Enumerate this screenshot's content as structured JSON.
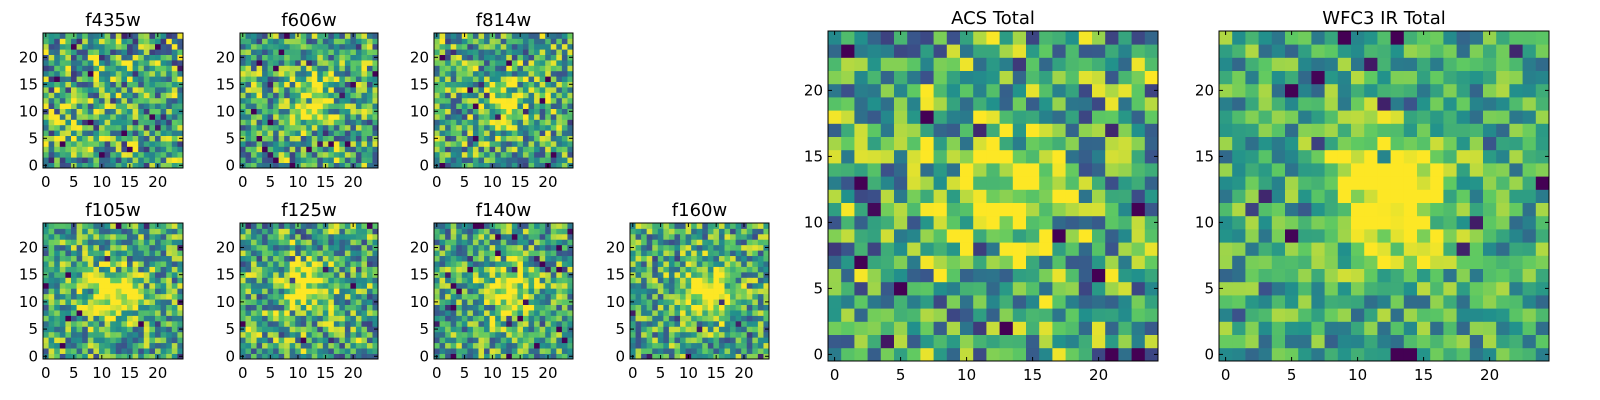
{
  "chart_data": [
    {
      "type": "heatmap",
      "title": "f435w",
      "grid_size": 25,
      "xlim": [
        -0.5,
        24.5
      ],
      "ylim": [
        -0.5,
        24.5
      ],
      "x_ticks": [
        0,
        5,
        10,
        15,
        20
      ],
      "y_ticks": [
        0,
        5,
        10,
        15,
        20
      ],
      "colormap": "viridis",
      "source_center": null,
      "source_amplitude": 0.0,
      "noise_amplitude": 0.55,
      "seed": 11
    },
    {
      "type": "heatmap",
      "title": "f606w",
      "grid_size": 25,
      "xlim": [
        -0.5,
        24.5
      ],
      "ylim": [
        -0.5,
        24.5
      ],
      "x_ticks": [
        0,
        5,
        10,
        15,
        20
      ],
      "y_ticks": [
        0,
        5,
        10,
        15,
        20
      ],
      "colormap": "viridis",
      "source_center": [
        12,
        11.5
      ],
      "source_amplitude": 0.35,
      "noise_amplitude": 0.5,
      "seed": 23
    },
    {
      "type": "heatmap",
      "title": "f814w",
      "grid_size": 25,
      "xlim": [
        -0.5,
        24.5
      ],
      "ylim": [
        -0.5,
        24.5
      ],
      "x_ticks": [
        0,
        5,
        10,
        15,
        20
      ],
      "y_ticks": [
        0,
        5,
        10,
        15,
        20
      ],
      "colormap": "viridis",
      "source_center": [
        12,
        11.5
      ],
      "source_amplitude": 0.35,
      "noise_amplitude": 0.5,
      "seed": 37
    },
    {
      "type": "heatmap",
      "title": "f105w",
      "grid_size": 25,
      "xlim": [
        -0.5,
        24.5
      ],
      "ylim": [
        -0.5,
        24.5
      ],
      "x_ticks": [
        0,
        5,
        10,
        15,
        20
      ],
      "y_ticks": [
        0,
        5,
        10,
        15,
        20
      ],
      "colormap": "viridis",
      "source_center": [
        12,
        11.5
      ],
      "source_amplitude": 0.55,
      "noise_amplitude": 0.45,
      "seed": 41
    },
    {
      "type": "heatmap",
      "title": "f125w",
      "grid_size": 25,
      "xlim": [
        -0.5,
        24.5
      ],
      "ylim": [
        -0.5,
        24.5
      ],
      "x_ticks": [
        0,
        5,
        10,
        15,
        20
      ],
      "y_ticks": [
        0,
        5,
        10,
        15,
        20
      ],
      "colormap": "viridis",
      "source_center": [
        12,
        12.5
      ],
      "source_amplitude": 0.45,
      "noise_amplitude": 0.5,
      "seed": 53
    },
    {
      "type": "heatmap",
      "title": "f140w",
      "grid_size": 25,
      "xlim": [
        -0.5,
        24.5
      ],
      "ylim": [
        -0.5,
        24.5
      ],
      "x_ticks": [
        0,
        5,
        10,
        15,
        20
      ],
      "y_ticks": [
        0,
        5,
        10,
        15,
        20
      ],
      "colormap": "viridis",
      "source_center": [
        12.5,
        12
      ],
      "source_amplitude": 0.5,
      "noise_amplitude": 0.45,
      "seed": 67
    },
    {
      "type": "heatmap",
      "title": "f160w",
      "grid_size": 25,
      "xlim": [
        -0.5,
        24.5
      ],
      "ylim": [
        -0.5,
        24.5
      ],
      "x_ticks": [
        0,
        5,
        10,
        15,
        20
      ],
      "y_ticks": [
        0,
        5,
        10,
        15,
        20
      ],
      "colormap": "viridis",
      "source_center": [
        13,
        12
      ],
      "source_amplitude": 0.5,
      "noise_amplitude": 0.45,
      "seed": 79
    },
    {
      "type": "heatmap",
      "title": "ACS Total",
      "grid_size": 25,
      "xlim": [
        -0.5,
        24.5
      ],
      "ylim": [
        -0.5,
        24.5
      ],
      "x_ticks": [
        0,
        5,
        10,
        15,
        20
      ],
      "y_ticks": [
        0,
        5,
        10,
        15,
        20
      ],
      "colormap": "viridis",
      "source_center": [
        12,
        12
      ],
      "source_amplitude": 0.4,
      "noise_amplitude": 0.5,
      "seed": 83
    },
    {
      "type": "heatmap",
      "title": "WFC3 IR Total",
      "grid_size": 25,
      "xlim": [
        -0.5,
        24.5
      ],
      "ylim": [
        -0.5,
        24.5
      ],
      "x_ticks": [
        0,
        5,
        10,
        15,
        20
      ],
      "y_ticks": [
        0,
        5,
        10,
        15,
        20
      ],
      "colormap": "viridis",
      "source_center": [
        12.5,
        12
      ],
      "source_amplitude": 0.65,
      "noise_amplitude": 0.35,
      "seed": 97
    }
  ],
  "colors": {
    "viridis_stops": [
      "#440154",
      "#3b528b",
      "#21918c",
      "#5ec962",
      "#fde725"
    ],
    "axis_color": "#000000",
    "background": "#ffffff"
  }
}
